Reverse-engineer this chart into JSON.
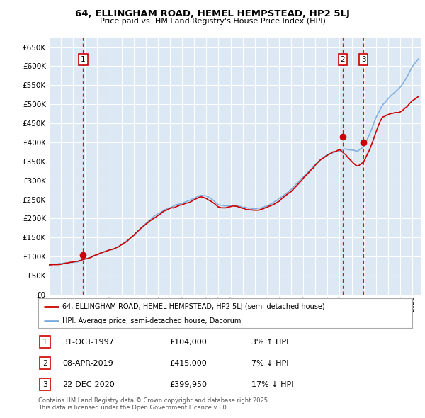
{
  "title": "64, ELLINGHAM ROAD, HEMEL HEMPSTEAD, HP2 5LJ",
  "subtitle": "Price paid vs. HM Land Registry's House Price Index (HPI)",
  "ylim": [
    0,
    675000
  ],
  "ytick_step": 50000,
  "bg_color": "#dce9f5",
  "grid_color": "#ffffff",
  "sale_line_color": "#cc0000",
  "hpi_line_color": "#7aaadd",
  "annotation_box_color": "#cc0000",
  "transactions": [
    {
      "date_num": 1997.83,
      "price": 104000,
      "label": "1",
      "pct": "3%",
      "dir": "↑",
      "date_str": "31-OCT-1997"
    },
    {
      "date_num": 2019.27,
      "price": 415000,
      "label": "2",
      "pct": "7%",
      "dir": "↓",
      "date_str": "08-APR-2019"
    },
    {
      "date_num": 2020.97,
      "price": 399950,
      "label": "3",
      "pct": "17%",
      "dir": "↓",
      "date_str": "22-DEC-2020"
    }
  ],
  "legend_entries": [
    "64, ELLINGHAM ROAD, HEMEL HEMPSTEAD, HP2 5LJ (semi-detached house)",
    "HPI: Average price, semi-detached house, Dacorum"
  ],
  "footer": "Contains HM Land Registry data © Crown copyright and database right 2025.\nThis data is licensed under the Open Government Licence v3.0.",
  "xmin": 1995.3,
  "xmax": 2025.7
}
